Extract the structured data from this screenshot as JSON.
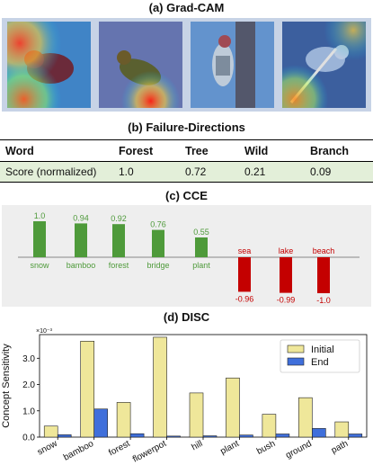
{
  "gradcam": {
    "title": "(a) Grad-CAM"
  },
  "failure_directions": {
    "title": "(b) Failure-Directions",
    "header": [
      "Word",
      "Forest",
      "Tree",
      "Wild",
      "Branch"
    ],
    "row": [
      "Score (normalized)",
      "1.0",
      "0.72",
      "0.21",
      "0.09"
    ]
  },
  "cce": {
    "title": "(c) CCE",
    "positive": {
      "color": "#4e9a3a",
      "items": [
        {
          "word": "snow",
          "value": "1.0",
          "score": 1.0
        },
        {
          "word": "bamboo",
          "value": "0.94",
          "score": 0.94
        },
        {
          "word": "forest",
          "value": "0.92",
          "score": 0.92
        },
        {
          "word": "bridge",
          "value": "0.76",
          "score": 0.76
        },
        {
          "word": "plant",
          "value": "0.55",
          "score": 0.55
        }
      ]
    },
    "negative": {
      "color": "#c40000",
      "items": [
        {
          "word": "sea",
          "value": "-0.96",
          "score": -0.96
        },
        {
          "word": "lake",
          "value": "-0.99",
          "score": -0.99
        },
        {
          "word": "beach",
          "value": "-1.0",
          "score": -1.0
        }
      ]
    }
  },
  "chart_data": {
    "type": "bar",
    "title": "(d) DISC",
    "ylabel": "Concept Sensitivity",
    "y_scale_label": "×10⁻³",
    "ylim": [
      0,
      3.9
    ],
    "yticks": [
      0.0,
      1.0,
      2.0,
      3.0
    ],
    "ytick_labels": [
      "0.0",
      "1.0",
      "2.0",
      "3.0"
    ],
    "categories": [
      "snow",
      "bamboo",
      "forest",
      "flowerpot",
      "hill",
      "plant",
      "bush",
      "ground",
      "path"
    ],
    "series": [
      {
        "name": "Initial",
        "color": "#efe79a",
        "values": [
          0.42,
          3.65,
          1.32,
          3.8,
          1.68,
          2.25,
          0.87,
          1.5,
          0.58
        ]
      },
      {
        "name": "End",
        "color": "#3f6fdb",
        "values": [
          0.09,
          1.07,
          0.13,
          0.04,
          0.05,
          0.08,
          0.12,
          0.33,
          0.12
        ]
      }
    ],
    "legend_position": "top-right"
  }
}
